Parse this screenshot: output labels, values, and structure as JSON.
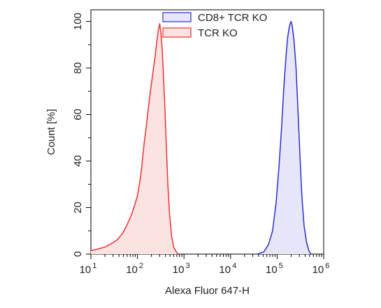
{
  "chart_data": {
    "type": "area",
    "xlabel": "Alexa Fluor 647-H",
    "ylabel": "Count [%]",
    "xscale": "log10",
    "xlim": [
      10,
      1000000
    ],
    "ylim": [
      0,
      105
    ],
    "x_ticks": [
      {
        "value": 10,
        "base": "10",
        "exp": "1"
      },
      {
        "value": 100,
        "base": "10",
        "exp": "2"
      },
      {
        "value": 1000,
        "base": "10",
        "exp": "3"
      },
      {
        "value": 10000,
        "base": "10",
        "exp": "4"
      },
      {
        "value": 100000,
        "base": "10",
        "exp": "5"
      },
      {
        "value": 1000000,
        "base": "10",
        "exp": "6"
      }
    ],
    "y_ticks": [
      "0",
      "20",
      "40",
      "60",
      "80",
      "100"
    ],
    "legend_position": "top",
    "series": [
      {
        "name": "CD8+ TCR KO",
        "stroke": "#2b2bd6",
        "fill": "#e6e6f8",
        "points": [
          [
            38000,
            0
          ],
          [
            52000,
            1
          ],
          [
            65000,
            4
          ],
          [
            80000,
            10
          ],
          [
            95000,
            22
          ],
          [
            110000,
            38
          ],
          [
            125000,
            55
          ],
          [
            140000,
            72
          ],
          [
            155000,
            85
          ],
          [
            168000,
            93
          ],
          [
            180000,
            97
          ],
          [
            190000,
            99
          ],
          [
            200000,
            100
          ],
          [
            212000,
            98
          ],
          [
            230000,
            92
          ],
          [
            255000,
            80
          ],
          [
            280000,
            62
          ],
          [
            310000,
            42
          ],
          [
            340000,
            25
          ],
          [
            380000,
            12
          ],
          [
            430000,
            5
          ],
          [
            480000,
            1.5
          ],
          [
            530000,
            0
          ]
        ]
      },
      {
        "name": "TCR KO",
        "stroke": "#ee3030",
        "fill": "#fde2e2",
        "points": [
          [
            10,
            1.5
          ],
          [
            13,
            2
          ],
          [
            16,
            2.5
          ],
          [
            20,
            3
          ],
          [
            25,
            4
          ],
          [
            30,
            5
          ],
          [
            36,
            6
          ],
          [
            42,
            7.5
          ],
          [
            50,
            9.5
          ],
          [
            58,
            12
          ],
          [
            66,
            14.5
          ],
          [
            75,
            17
          ],
          [
            82,
            19.5
          ],
          [
            90,
            22
          ],
          [
            100,
            25
          ],
          [
            110,
            30
          ],
          [
            120,
            35
          ],
          [
            130,
            42
          ],
          [
            140,
            48
          ],
          [
            155,
            55
          ],
          [
            170,
            62
          ],
          [
            190,
            70
          ],
          [
            215,
            78
          ],
          [
            240,
            85
          ],
          [
            260,
            91
          ],
          [
            280,
            96
          ],
          [
            300,
            99
          ],
          [
            320,
            95
          ],
          [
            340,
            88
          ],
          [
            360,
            78
          ],
          [
            390,
            62
          ],
          [
            420,
            45
          ],
          [
            450,
            30
          ],
          [
            490,
            17
          ],
          [
            540,
            8
          ],
          [
            600,
            3
          ],
          [
            680,
            1
          ],
          [
            760,
            0
          ]
        ]
      }
    ]
  }
}
